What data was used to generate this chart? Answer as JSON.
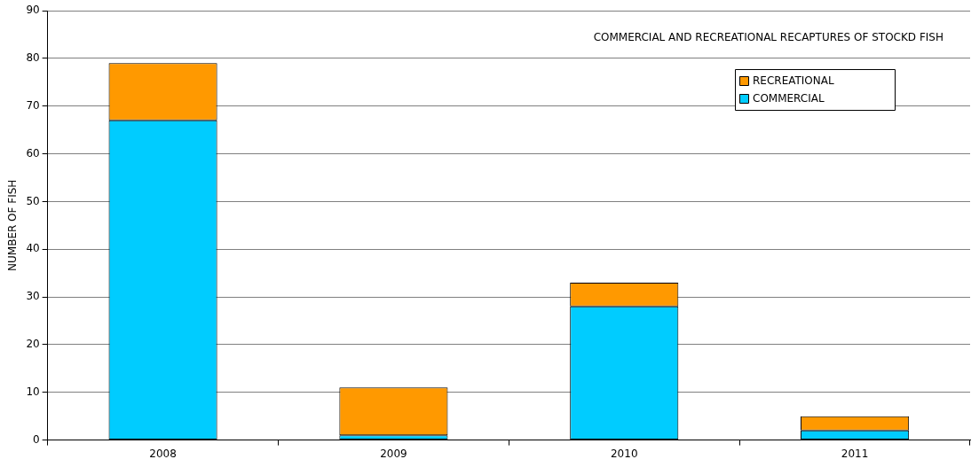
{
  "chart_data": {
    "type": "bar",
    "title": "COMMERCIAL AND RECREATIONAL RECAPTURES OF STOCKD FISH",
    "ylabel": "NUMBER OF FISH",
    "categories": [
      "2008",
      "2009",
      "2010",
      "2011"
    ],
    "stacked": true,
    "series": [
      {
        "name": "COMMERCIAL",
        "color": "#00ccff",
        "values": [
          67,
          1,
          28,
          2
        ]
      },
      {
        "name": "RECREATIONAL",
        "color": "#ff9900",
        "values": [
          12,
          10,
          5,
          3
        ]
      }
    ],
    "ylim": [
      0,
      90
    ],
    "yticks": [
      0,
      10,
      20,
      30,
      40,
      50,
      60,
      70,
      80,
      90
    ],
    "grid": "y",
    "legend": "top right"
  }
}
